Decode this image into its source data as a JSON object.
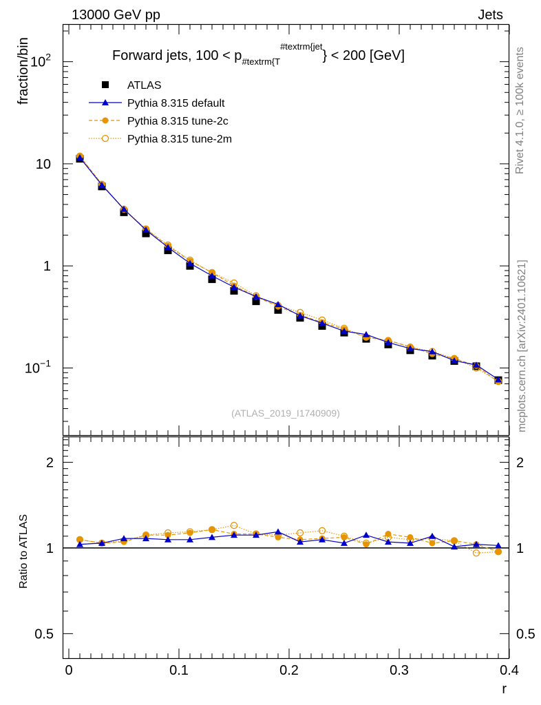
{
  "header": {
    "left": "13000 GeV pp",
    "right": "Jets"
  },
  "side_labels": {
    "rivet": "Rivet 4.1.0, ≥ 100k events",
    "mcplots": "mcplots.cern.ch [arXiv:2401.10621]"
  },
  "chart_data": [
    {
      "type": "scatter",
      "panel": "main",
      "title_prefix": "Forward jets, 100 < p",
      "title_sub": "#textrm{T",
      "title_sup": "#textrm{jet",
      "title_suffix": "} < 200 [GeV]",
      "ylabel": "fraction/bin",
      "yscale": "log",
      "ylim": [
        0.022,
        230
      ],
      "xlim": [
        -0.005,
        0.4
      ],
      "yticks": [
        {
          "value": 100,
          "base": "10",
          "exp": "2"
        },
        {
          "value": 10,
          "base": "10",
          "exp": ""
        },
        {
          "value": 1,
          "base": "1",
          "exp": ""
        },
        {
          "value": 0.1,
          "base": "10",
          "exp": "−1"
        }
      ],
      "watermark": "(ATLAS_2019_I1740909)",
      "x": [
        0.01,
        0.03,
        0.05,
        0.07,
        0.09,
        0.11,
        0.13,
        0.15,
        0.17,
        0.19,
        0.21,
        0.23,
        0.25,
        0.27,
        0.29,
        0.31,
        0.33,
        0.35,
        0.37,
        0.39
      ],
      "series": [
        {
          "name": "ATLAS",
          "color": "#000000",
          "values": [
            11.2,
            6.0,
            3.35,
            2.08,
            1.42,
            1.0,
            0.74,
            0.57,
            0.45,
            0.37,
            0.31,
            0.258,
            0.222,
            0.193,
            0.17,
            0.149,
            0.132,
            0.117,
            0.104,
            0.076
          ]
        },
        {
          "name": "Pythia 8.315 default",
          "color": "#0000cc",
          "values": [
            11.5,
            6.2,
            3.6,
            2.25,
            1.52,
            1.06,
            0.8,
            0.62,
            0.5,
            0.42,
            0.325,
            0.275,
            0.23,
            0.213,
            0.178,
            0.155,
            0.145,
            0.118,
            0.107,
            0.077
          ]
        },
        {
          "name": "Pythia 8.315 tune-2c",
          "color": "#e69500",
          "values": [
            11.9,
            6.3,
            3.55,
            2.3,
            1.57,
            1.12,
            0.86,
            0.64,
            0.5,
            0.4,
            0.33,
            0.28,
            0.24,
            0.2,
            0.186,
            0.162,
            0.137,
            0.124,
            0.105,
            0.073
          ]
        },
        {
          "name": "Pythia 8.315 tune-2m",
          "color": "#e69500",
          "values": [
            11.9,
            6.3,
            3.6,
            2.3,
            1.6,
            1.14,
            0.86,
            0.68,
            0.51,
            0.41,
            0.35,
            0.295,
            0.245,
            0.2,
            0.186,
            0.16,
            0.145,
            0.124,
            0.1,
            0.074
          ]
        }
      ]
    },
    {
      "type": "scatter",
      "panel": "ratio",
      "ylabel": "Ratio to ATLAS",
      "xlabel": "r",
      "yscale": "log",
      "ylim": [
        0.41,
        2.45
      ],
      "xlim": [
        -0.005,
        0.4
      ],
      "yticks": [
        {
          "value": 2,
          "label": "2"
        },
        {
          "value": 1,
          "label": "1"
        },
        {
          "value": 0.5,
          "label": "0.5"
        }
      ],
      "xticks": [
        {
          "value": 0,
          "label": "0"
        },
        {
          "value": 0.1,
          "label": "0.1"
        },
        {
          "value": 0.2,
          "label": "0.2"
        },
        {
          "value": 0.3,
          "label": "0.3"
        },
        {
          "value": 0.4,
          "label": "0.4"
        }
      ],
      "x": [
        0.01,
        0.03,
        0.05,
        0.07,
        0.09,
        0.11,
        0.13,
        0.15,
        0.17,
        0.19,
        0.21,
        0.23,
        0.25,
        0.27,
        0.29,
        0.31,
        0.33,
        0.35,
        0.37,
        0.39
      ],
      "series": [
        {
          "name": "Pythia 8.315 default",
          "color": "#0000cc",
          "values": [
            1.03,
            1.04,
            1.08,
            1.08,
            1.07,
            1.07,
            1.09,
            1.11,
            1.11,
            1.14,
            1.05,
            1.07,
            1.04,
            1.11,
            1.05,
            1.04,
            1.1,
            1.01,
            1.03,
            1.02
          ]
        },
        {
          "name": "Pythia 8.315 tune-2c",
          "color": "#e69500",
          "values": [
            1.07,
            1.04,
            1.05,
            1.11,
            1.11,
            1.13,
            1.16,
            1.12,
            1.12,
            1.09,
            1.07,
            1.08,
            1.09,
            1.03,
            1.12,
            1.09,
            1.04,
            1.06,
            1.03,
            0.97
          ]
        },
        {
          "name": "Pythia 8.315 tune-2m",
          "color": "#e69500",
          "values": [
            1.07,
            1.04,
            1.06,
            1.11,
            1.13,
            1.14,
            1.16,
            1.2,
            1.12,
            1.11,
            1.13,
            1.15,
            1.1,
            1.04,
            1.09,
            1.07,
            1.08,
            1.06,
            0.96,
            0.97
          ]
        }
      ]
    }
  ]
}
